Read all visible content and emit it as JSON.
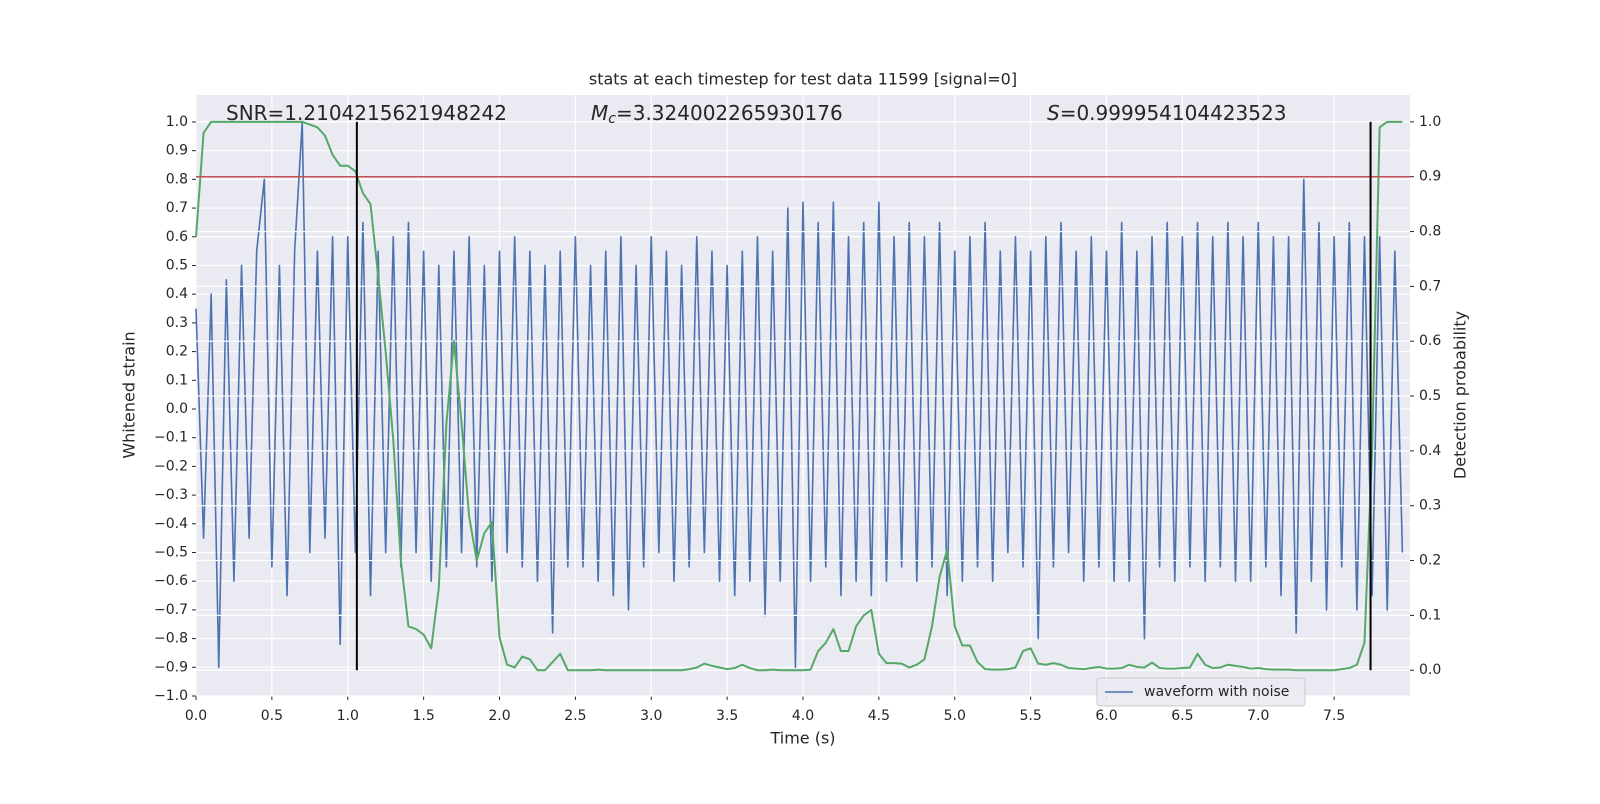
{
  "chart_data": {
    "type": "line",
    "title": "stats at each timestep for test data 11599 [signal=0]",
    "xlabel": "Time (s)",
    "ylabel": "Whitened strain",
    "y2label": "Detection probability",
    "annotations": [
      {
        "text": "SNR=1.2104215621948242"
      },
      {
        "symbol": "M",
        "sub": "c",
        "text": "=3.324002265930176"
      },
      {
        "symbol": "S",
        "text": "=0.999954104423523"
      }
    ],
    "x": [
      0,
      0.05,
      0.1,
      0.15,
      0.2,
      0.25,
      0.3,
      0.35,
      0.4,
      0.45,
      0.5,
      0.55,
      0.6,
      0.65,
      0.7,
      0.75,
      0.8,
      0.85,
      0.9,
      0.95,
      1,
      1.05,
      1.1,
      1.15,
      1.2,
      1.25,
      1.3,
      1.35,
      1.4,
      1.45,
      1.5,
      1.55,
      1.6,
      1.65,
      1.7,
      1.75,
      1.8,
      1.85,
      1.9,
      1.95,
      2,
      2.05,
      2.1,
      2.15,
      2.2,
      2.25,
      2.3,
      2.35,
      2.4,
      2.45,
      2.5,
      2.55,
      2.6,
      2.65,
      2.7,
      2.75,
      2.8,
      2.85,
      2.9,
      2.95,
      3,
      3.05,
      3.1,
      3.15,
      3.2,
      3.25,
      3.3,
      3.35,
      3.4,
      3.45,
      3.5,
      3.55,
      3.6,
      3.65,
      3.7,
      3.75,
      3.8,
      3.85,
      3.9,
      3.95,
      4,
      4.05,
      4.1,
      4.15,
      4.2,
      4.25,
      4.3,
      4.35,
      4.4,
      4.45,
      4.5,
      4.55,
      4.6,
      4.65,
      4.7,
      4.75,
      4.8,
      4.85,
      4.9,
      4.95,
      5,
      5.05,
      5.1,
      5.15,
      5.2,
      5.25,
      5.3,
      5.35,
      5.4,
      5.45,
      5.5,
      5.55,
      5.6,
      5.65,
      5.7,
      5.75,
      5.8,
      5.85,
      5.9,
      5.95,
      6,
      6.05,
      6.1,
      6.15,
      6.2,
      6.25,
      6.3,
      6.35,
      6.4,
      6.45,
      6.5,
      6.55,
      6.6,
      6.65,
      6.7,
      6.75,
      6.8,
      6.85,
      6.9,
      6.95,
      7,
      7.05,
      7.1,
      7.15,
      7.2,
      7.25,
      7.3,
      7.35,
      7.4,
      7.45,
      7.5,
      7.55,
      7.6,
      7.65,
      7.7,
      7.75,
      7.8,
      7.85,
      7.9,
      7.95
    ],
    "series": [
      {
        "name": "waveform with noise",
        "color": "#4c72b0",
        "values": [
          0.35,
          -0.45,
          0.4,
          -0.9,
          0.45,
          -0.6,
          0.5,
          -0.45,
          0.55,
          0.8,
          -0.55,
          0.5,
          -0.65,
          0.55,
          1.0,
          -0.5,
          0.55,
          -0.45,
          0.6,
          -0.82,
          0.6,
          -0.5,
          0.65,
          -0.65,
          0.55,
          -0.5,
          0.6,
          -0.55,
          0.65,
          -0.5,
          0.55,
          -0.6,
          0.5,
          -0.55,
          0.55,
          -0.5,
          0.6,
          -0.55,
          0.5,
          -0.6,
          0.55,
          -0.5,
          0.6,
          -0.55,
          0.55,
          -0.6,
          0.5,
          -0.78,
          0.55,
          -0.55,
          0.6,
          -0.55,
          0.5,
          -0.6,
          0.55,
          -0.65,
          0.6,
          -0.7,
          0.5,
          -0.55,
          0.6,
          -0.5,
          0.55,
          -0.6,
          0.5,
          -0.55,
          0.6,
          -0.5,
          0.55,
          -0.6,
          0.5,
          -0.65,
          0.55,
          -0.6,
          0.6,
          -0.72,
          0.55,
          -0.6,
          0.7,
          -0.9,
          0.72,
          -0.6,
          0.65,
          -0.55,
          0.72,
          -0.65,
          0.6,
          -0.6,
          0.65,
          -0.65,
          0.72,
          -0.6,
          0.6,
          -0.55,
          0.65,
          -0.6,
          0.6,
          -0.55,
          0.65,
          -0.65,
          0.55,
          -0.6,
          0.6,
          -0.55,
          0.65,
          -0.6,
          0.55,
          -0.5,
          0.6,
          -0.55,
          0.55,
          -0.8,
          0.6,
          -0.55,
          0.65,
          -0.5,
          0.55,
          -0.6,
          0.6,
          -0.55,
          0.55,
          -0.6,
          0.65,
          -0.6,
          0.55,
          -0.8,
          0.6,
          -0.55,
          0.65,
          -0.6,
          0.6,
          -0.55,
          0.65,
          -0.6,
          0.6,
          -0.55,
          0.65,
          -0.6,
          0.6,
          -0.6,
          0.65,
          -0.55,
          0.6,
          -0.65,
          0.6,
          -0.78,
          0.8,
          -0.6,
          0.65,
          -0.7,
          0.6,
          -0.55,
          0.65,
          -0.7,
          0.6,
          -0.65,
          0.6,
          -0.7,
          0.55,
          -0.5
        ]
      },
      {
        "color": "#55a868",
        "axis": "y2",
        "values": [
          0.79,
          0.98,
          1.0,
          1.0,
          1.0,
          1.0,
          1.0,
          1.0,
          1.0,
          1.0,
          1.0,
          1.0,
          1.0,
          1.0,
          1.0,
          0.995,
          0.99,
          0.975,
          0.94,
          0.92,
          0.92,
          0.91,
          0.87,
          0.85,
          0.72,
          0.58,
          0.42,
          0.2,
          0.08,
          0.075,
          0.065,
          0.04,
          0.15,
          0.45,
          0.6,
          0.45,
          0.28,
          0.2,
          0.25,
          0.27,
          0.06,
          0.01,
          0.005,
          0.025,
          0.02,
          0.0,
          0.0,
          0.015,
          0.03,
          0.0,
          0.0,
          0.0,
          0.0,
          0.001,
          0.0,
          0.0,
          0.0,
          0.0,
          0.0,
          0.0,
          0.0,
          0.0,
          0.0,
          0.0,
          0.0,
          0.002,
          0.005,
          0.012,
          0.008,
          0.005,
          0.002,
          0.004,
          0.01,
          0.004,
          0.0,
          0.0,
          0.001,
          0.0,
          0.0,
          0.0,
          0.0,
          0.001,
          0.035,
          0.05,
          0.075,
          0.035,
          0.035,
          0.08,
          0.1,
          0.11,
          0.03,
          0.013,
          0.013,
          0.012,
          0.005,
          0.01,
          0.02,
          0.08,
          0.17,
          0.22,
          0.08,
          0.045,
          0.045,
          0.015,
          0.002,
          0.001,
          0.001,
          0.002,
          0.005,
          0.035,
          0.04,
          0.012,
          0.01,
          0.013,
          0.01,
          0.004,
          0.003,
          0.002,
          0.004,
          0.006,
          0.003,
          0.003,
          0.004,
          0.01,
          0.006,
          0.005,
          0.014,
          0.004,
          0.003,
          0.003,
          0.004,
          0.005,
          0.03,
          0.01,
          0.004,
          0.005,
          0.01,
          0.008,
          0.006,
          0.003,
          0.004,
          0.002,
          0.001,
          0.001,
          0.001,
          0.0,
          0.0,
          0.0,
          0.0,
          0.0,
          0.0,
          0.002,
          0.004,
          0.01,
          0.05,
          0.4,
          0.99,
          1.0,
          1.0,
          1.0
        ]
      }
    ],
    "hline": {
      "y2": 0.9,
      "color": "#c44e52"
    },
    "vlines": {
      "x": [
        1.06,
        7.74
      ],
      "y2_range": [
        0,
        1
      ],
      "color": "#000000"
    },
    "xlim": [
      0,
      8
    ],
    "ylim": [
      -1.0,
      1.094
    ],
    "y2lim": [
      -0.047,
      1.049
    ],
    "xticks": [
      {
        "value": 0,
        "label": "0.0"
      },
      {
        "value": 0.5,
        "label": "0.5"
      },
      {
        "value": 1,
        "label": "1.0"
      },
      {
        "value": 1.5,
        "label": "1.5"
      },
      {
        "value": 2,
        "label": "2.0"
      },
      {
        "value": 2.5,
        "label": "2.5"
      },
      {
        "value": 3,
        "label": "3.0"
      },
      {
        "value": 3.5,
        "label": "3.5"
      },
      {
        "value": 4,
        "label": "4.0"
      },
      {
        "value": 4.5,
        "label": "4.5"
      },
      {
        "value": 5,
        "label": "5.0"
      },
      {
        "value": 5.5,
        "label": "5.5"
      },
      {
        "value": 6,
        "label": "6.0"
      },
      {
        "value": 6.5,
        "label": "6.5"
      },
      {
        "value": 7,
        "label": "7.0"
      },
      {
        "value": 7.5,
        "label": "7.5"
      }
    ],
    "yticks": [
      {
        "value": -1,
        "label": "−1.0"
      },
      {
        "value": -0.9,
        "label": "−0.9"
      },
      {
        "value": -0.8,
        "label": "−0.8"
      },
      {
        "value": -0.7,
        "label": "−0.7"
      },
      {
        "value": -0.6,
        "label": "−0.6"
      },
      {
        "value": -0.5,
        "label": "−0.5"
      },
      {
        "value": -0.4,
        "label": "−0.4"
      },
      {
        "value": -0.3,
        "label": "−0.3"
      },
      {
        "value": -0.2,
        "label": "−0.2"
      },
      {
        "value": -0.1,
        "label": "−0.1"
      },
      {
        "value": 0,
        "label": "0.0"
      },
      {
        "value": 0.1,
        "label": "0.1"
      },
      {
        "value": 0.2,
        "label": "0.2"
      },
      {
        "value": 0.3,
        "label": "0.3"
      },
      {
        "value": 0.4,
        "label": "0.4"
      },
      {
        "value": 0.5,
        "label": "0.5"
      },
      {
        "value": 0.6,
        "label": "0.6"
      },
      {
        "value": 0.7,
        "label": "0.7"
      },
      {
        "value": 0.8,
        "label": "0.8"
      },
      {
        "value": 0.9,
        "label": "0.9"
      },
      {
        "value": 1,
        "label": "1.0"
      }
    ],
    "y2ticks": [
      {
        "value": 0,
        "label": "0.0"
      },
      {
        "value": 0.1,
        "label": "0.1"
      },
      {
        "value": 0.2,
        "label": "0.2"
      },
      {
        "value": 0.3,
        "label": "0.3"
      },
      {
        "value": 0.4,
        "label": "0.4"
      },
      {
        "value": 0.5,
        "label": "0.5"
      },
      {
        "value": 0.6,
        "label": "0.6"
      },
      {
        "value": 0.7,
        "label": "0.7"
      },
      {
        "value": 0.8,
        "label": "0.8"
      },
      {
        "value": 0.9,
        "label": "0.9"
      },
      {
        "value": 1,
        "label": "1.0"
      }
    ],
    "grid": true,
    "legend": "lower right"
  }
}
